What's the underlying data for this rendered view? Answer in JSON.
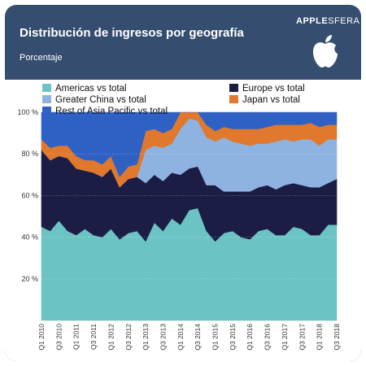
{
  "header": {
    "title": "Distribución de ingresos por geografía",
    "subtitle": "Porcentaje",
    "brand_bold": "APPLE",
    "brand_light": "SFERA"
  },
  "colors": {
    "background": "#354e6f",
    "americas": "#6cc3c3",
    "europe": "#1c1d45",
    "greater_china": "#8fb3e0",
    "japan": "#e0782d",
    "rest_asia": "#2f61c4"
  },
  "chart_data": {
    "type": "area",
    "stacked": true,
    "title": "Distribución de ingresos por geografía",
    "ylabel": "Porcentaje",
    "ylim": [
      0,
      100
    ],
    "y_ticks": [
      "20 %",
      "40 %",
      "60 %",
      "80 %",
      "100 %"
    ],
    "legend_placement": "top",
    "x": [
      "Q1 2010",
      "Q2 2010",
      "Q3 2010",
      "Q4 2010",
      "Q1 2011",
      "Q2 2011",
      "Q3 2011",
      "Q4 2011",
      "Q1 2012",
      "Q2 2012",
      "Q3 2012",
      "Q4 2012",
      "Q1 2013",
      "Q2 2013",
      "Q3 2013",
      "Q4 2013",
      "Q1 2014",
      "Q2 2014",
      "Q3 2014",
      "Q4 2014",
      "Q1 2015",
      "Q2 2015",
      "Q3 2015",
      "Q4 2015",
      "Q1 2016",
      "Q2 2016",
      "Q3 2016",
      "Q4 2016",
      "Q1 2017",
      "Q2 2017",
      "Q3 2017",
      "Q4 2017",
      "Q1 2018",
      "Q2 2018",
      "Q3 2018"
    ],
    "x_tick_labels": [
      "Q1 2010",
      "Q3 2010",
      "Q1 2011",
      "Q3 2011",
      "Q1 2012",
      "Q3 2012",
      "Q1 2013",
      "Q3 2013",
      "Q1 2014",
      "Q3 2014",
      "Q1 2015",
      "Q3 2015",
      "Q1 2016",
      "Q3 2016",
      "Q1 2017",
      "Q3 2017",
      "Q1 2018",
      "Q3 2018"
    ],
    "series": [
      {
        "name": "Americas vs total",
        "legend_col": 0,
        "legend_row": 0,
        "color": "#6cc3c3",
        "values": [
          45,
          43,
          48,
          43,
          41,
          44,
          41,
          40,
          44,
          39,
          42,
          43,
          38,
          47,
          43,
          49,
          46,
          53,
          54,
          43,
          38,
          42,
          43,
          40,
          39,
          43,
          44,
          41,
          41,
          45,
          44,
          41,
          41,
          46,
          46
        ]
      },
      {
        "name": "Europe vs total",
        "legend_col": 1,
        "legend_row": 0,
        "color": "#1c1d45",
        "values": [
          37,
          34,
          31,
          35,
          32,
          28,
          30,
          29,
          29,
          25,
          26,
          26,
          28,
          23,
          24,
          22,
          24,
          20,
          20,
          22,
          27,
          20,
          19,
          22,
          23,
          21,
          21,
          22,
          24,
          21,
          21,
          23,
          23,
          20,
          22
        ]
      },
      {
        "name": "Greater China vs total",
        "legend_col": 0,
        "legend_row": 1,
        "color": "#8fb3e0",
        "values": [
          0,
          0,
          0,
          0,
          0,
          0,
          0,
          0,
          0,
          0,
          0,
          0,
          16,
          14,
          16,
          14,
          22,
          24,
          22,
          23,
          21,
          26,
          24,
          23,
          22,
          21,
          20,
          23,
          22,
          20,
          22,
          23,
          20,
          21,
          19
        ]
      },
      {
        "name": "Japan vs total",
        "legend_col": 1,
        "legend_row": 1,
        "color": "#e0782d",
        "values": [
          5,
          6,
          5,
          6,
          6,
          5,
          6,
          6,
          6,
          5,
          6,
          6,
          9,
          8,
          7,
          7,
          8,
          3,
          4,
          6,
          5,
          5,
          6,
          7,
          8,
          7,
          8,
          8,
          7,
          8,
          7,
          8,
          9,
          7,
          7
        ]
      },
      {
        "name": "Rest of Asia Pacific vs total",
        "legend_col": 0,
        "legend_row": 2,
        "color": "#2f61c4",
        "values": [
          13,
          17,
          16,
          16,
          21,
          23,
          23,
          25,
          21,
          31,
          26,
          25,
          9,
          8,
          10,
          8,
          0,
          0,
          0,
          6,
          9,
          7,
          8,
          8,
          8,
          8,
          7,
          6,
          6,
          6,
          6,
          5,
          7,
          6,
          6
        ]
      }
    ]
  }
}
